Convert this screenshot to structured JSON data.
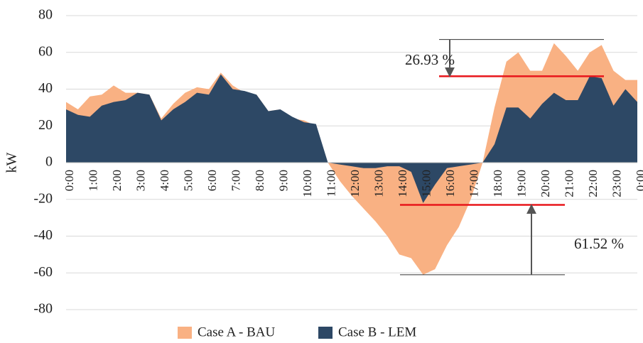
{
  "chart_data": {
    "type": "area",
    "y_label": "kW",
    "categories": [
      "0:00",
      null,
      "1:00",
      null,
      "2:00",
      null,
      "3:00",
      null,
      "4:00",
      null,
      "5:00",
      null,
      "6:00",
      null,
      "7:00",
      null,
      "8:00",
      null,
      "9:00",
      null,
      "10:00",
      null,
      "11:00",
      null,
      "12:00",
      null,
      "13:00",
      null,
      "14:00",
      null,
      "15:00",
      null,
      "16:00",
      null,
      "17:00",
      null,
      "18:00",
      null,
      "19:00",
      null,
      "20:00",
      null,
      "21:00",
      null,
      "22:00",
      null,
      "23:00",
      null,
      "0:00"
    ],
    "series": [
      {
        "name": "Case A - BAU",
        "color": "#f9b183",
        "values": [
          33,
          29,
          36,
          37,
          42,
          38,
          38,
          37,
          24,
          32,
          38,
          41,
          40,
          49,
          42,
          38,
          37,
          28,
          29,
          24,
          23,
          20,
          0,
          -10,
          -18,
          -25,
          -32,
          -40,
          -50,
          -52,
          -61,
          -58,
          -45,
          -35,
          -20,
          0,
          30,
          55,
          60,
          50,
          50,
          65,
          58,
          50,
          60,
          64,
          50,
          45,
          45
        ]
      },
      {
        "name": "Case B - LEM",
        "color": "#2d4865",
        "values": [
          29,
          26,
          25,
          31,
          33,
          34,
          38,
          37,
          23,
          29,
          33,
          38,
          37,
          48,
          40,
          39,
          37,
          28,
          29,
          25,
          22,
          21,
          0,
          -1,
          -2,
          -3,
          -3,
          -2,
          -2,
          -5,
          -22,
          -12,
          -3,
          -2,
          -1,
          0,
          10,
          30,
          30,
          24,
          32,
          38,
          34,
          34,
          47,
          46,
          31,
          40,
          33
        ]
      }
    ],
    "ylim": [
      -80,
      80
    ],
    "yticks": [
      -80,
      -60,
      -40,
      -20,
      0,
      20,
      40,
      60,
      80
    ],
    "grid": true,
    "legend": "bottom",
    "annotations": [
      {
        "text": "26.93 %",
        "from": 67,
        "to": 47
      },
      {
        "text": "61.52 %",
        "from": -61,
        "to": -23
      }
    ]
  }
}
